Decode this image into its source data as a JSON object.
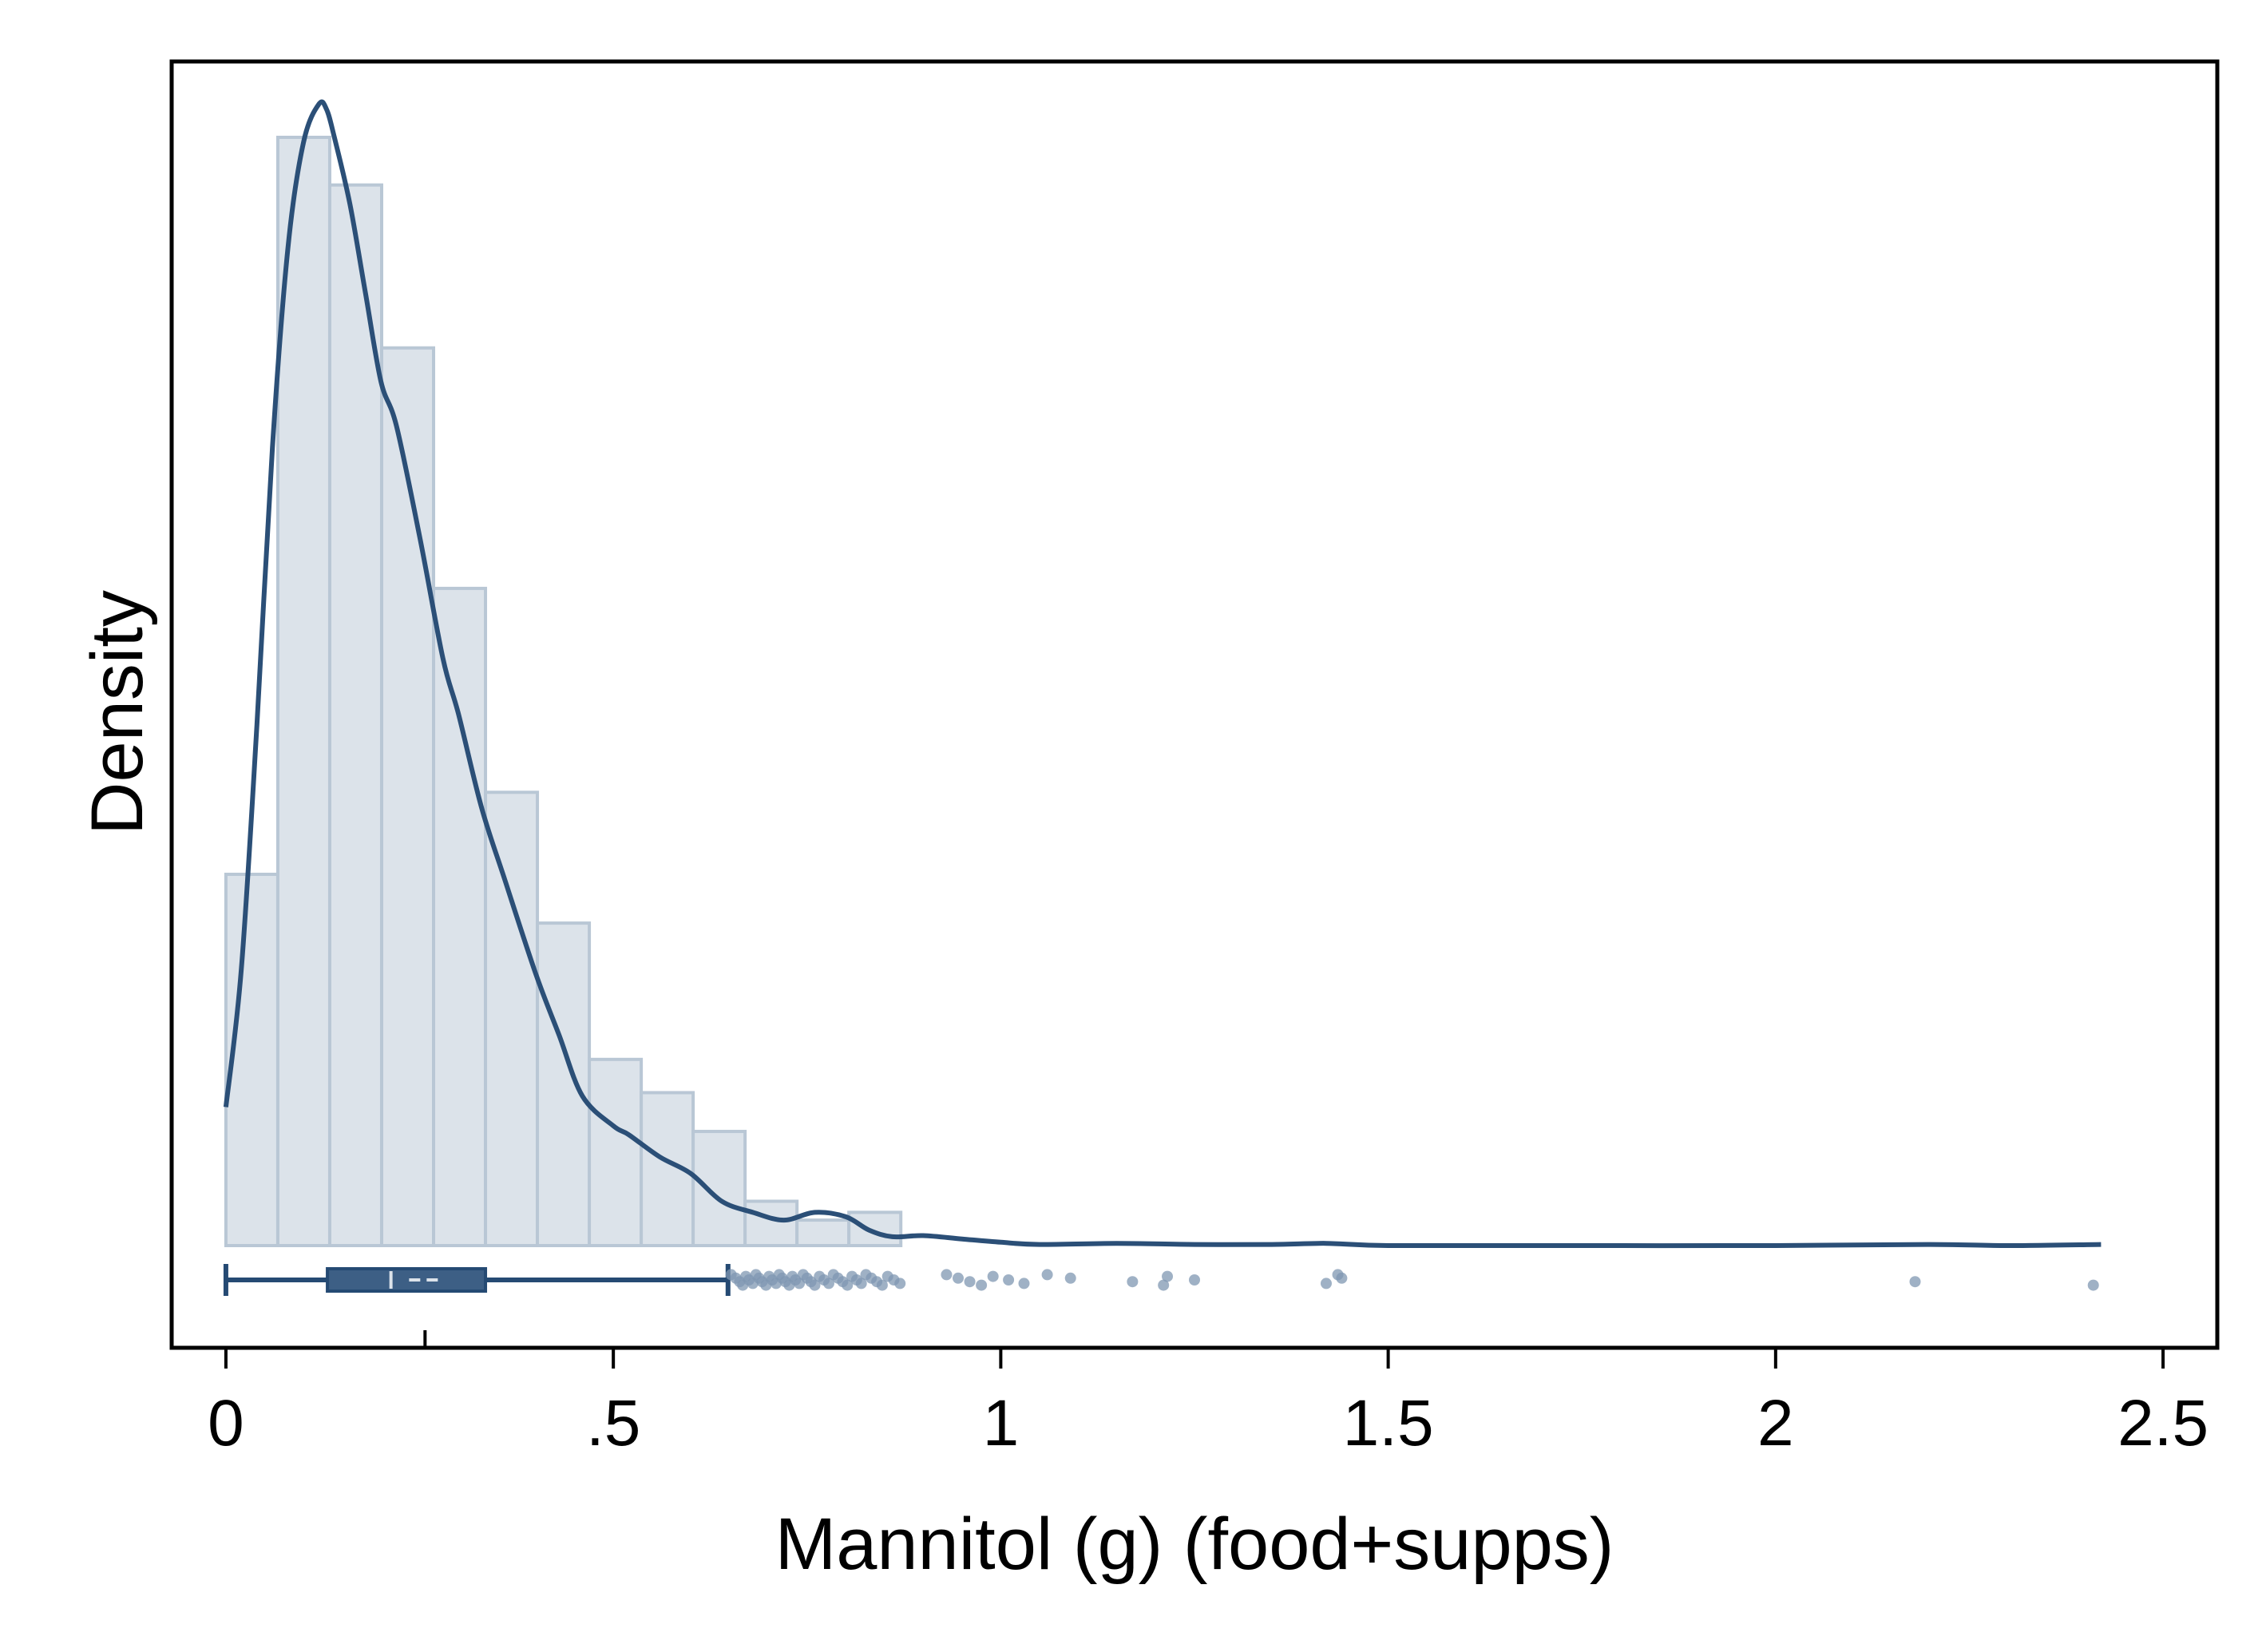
{
  "chart_data": {
    "type": "histogram",
    "xlabel": "Mannitol (g) (food+supps)",
    "ylabel": "Density",
    "xlim": [
      -0.07,
      2.57
    ],
    "ylim": [
      0,
      1
    ],
    "x_ticks": [
      {
        "value": 0,
        "label": "0"
      },
      {
        "value": 0.5,
        "label": ".5"
      },
      {
        "value": 1,
        "label": "1"
      },
      {
        "value": 1.5,
        "label": "1.5"
      },
      {
        "value": 2,
        "label": "2"
      },
      {
        "value": 2.5,
        "label": "2.5"
      }
    ],
    "y_ticks_shown": false,
    "grid": false,
    "bin_edges": [
      0,
      0.067,
      0.134,
      0.201,
      0.268,
      0.335,
      0.402,
      0.469,
      0.536,
      0.603,
      0.67,
      0.737,
      0.804,
      0.871
    ],
    "histogram_heights": [
      0.335,
      1.0,
      0.957,
      0.81,
      0.593,
      0.409,
      0.291,
      0.168,
      0.138,
      0.103,
      0.04,
      0.023,
      0.03
    ],
    "density_curve": {
      "x": [
        0,
        0.02,
        0.04,
        0.06,
        0.08,
        0.1,
        0.12,
        0.13,
        0.14,
        0.16,
        0.18,
        0.2,
        0.22,
        0.25,
        0.28,
        0.3,
        0.33,
        0.36,
        0.4,
        0.43,
        0.46,
        0.5,
        0.52,
        0.56,
        0.6,
        0.64,
        0.68,
        0.72,
        0.76,
        0.8,
        0.83,
        0.86,
        0.9,
        0.95,
        1.0,
        1.05,
        1.15,
        1.25,
        1.35,
        1.42,
        1.5,
        1.7,
        2.0,
        2.2,
        2.3,
        2.42
      ],
      "y": [
        0.125,
        0.25,
        0.47,
        0.72,
        0.9,
        0.995,
        1.03,
        1.025,
        1.0,
        0.94,
        0.86,
        0.78,
        0.74,
        0.64,
        0.53,
        0.48,
        0.395,
        0.33,
        0.245,
        0.19,
        0.135,
        0.108,
        0.1,
        0.08,
        0.065,
        0.04,
        0.03,
        0.023,
        0.03,
        0.026,
        0.014,
        0.008,
        0.009,
        0.006,
        0.003,
        0.001,
        0.002,
        0.001,
        0.001,
        0.002,
        0.0,
        0.0,
        0.0,
        0.001,
        0.0,
        0.001
      ]
    },
    "boxplot": {
      "whisker_low": 0.0,
      "q1": 0.131,
      "median": 0.213,
      "mean": 0.257,
      "q3": 0.335,
      "whisker_high": 0.648
    },
    "outliers": [
      0.652,
      0.658,
      0.663,
      0.667,
      0.671,
      0.675,
      0.68,
      0.684,
      0.688,
      0.692,
      0.697,
      0.701,
      0.705,
      0.71,
      0.714,
      0.718,
      0.722,
      0.727,
      0.731,
      0.735,
      0.74,
      0.745,
      0.75,
      0.755,
      0.76,
      0.766,
      0.772,
      0.778,
      0.784,
      0.79,
      0.796,
      0.802,
      0.808,
      0.814,
      0.82,
      0.826,
      0.833,
      0.84,
      0.847,
      0.854,
      0.862,
      0.87,
      0.93,
      0.945,
      0.96,
      0.975,
      0.99,
      1.01,
      1.03,
      1.06,
      1.09,
      1.17,
      1.21,
      1.215,
      1.25,
      1.42,
      1.435,
      1.44,
      2.18,
      2.41
    ],
    "colors": {
      "bar_fill": "#dce3ea",
      "bar_edge": "#b9c7d5",
      "curve": "#2b4f77",
      "box_fill": "#3d5f85",
      "box_stroke": "#254a73",
      "outlier": "#7f97b1",
      "frame": "#000000"
    }
  }
}
